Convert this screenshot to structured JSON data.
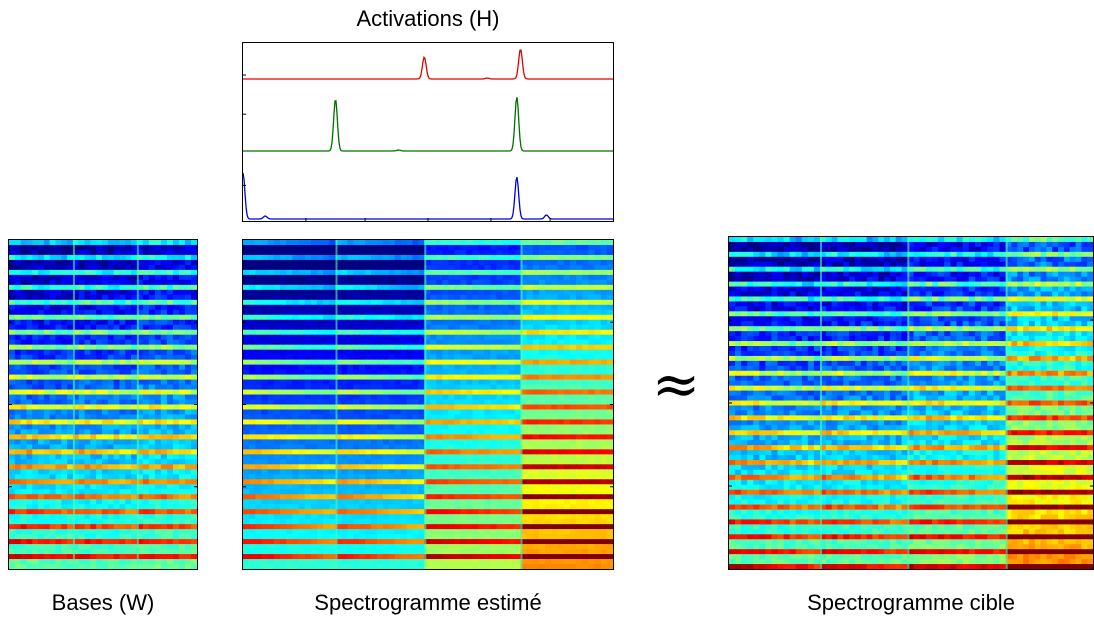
{
  "activations": {
    "title": "Activations (H)",
    "series_colors": [
      "#e00000",
      "#007000",
      "#0000e0"
    ]
  },
  "labels": {
    "bases": "Bases (W)",
    "estimate": "Spectrogramme estimé",
    "target": "Spectrogramme cible",
    "approx": "≈"
  },
  "colormap": "jet"
}
